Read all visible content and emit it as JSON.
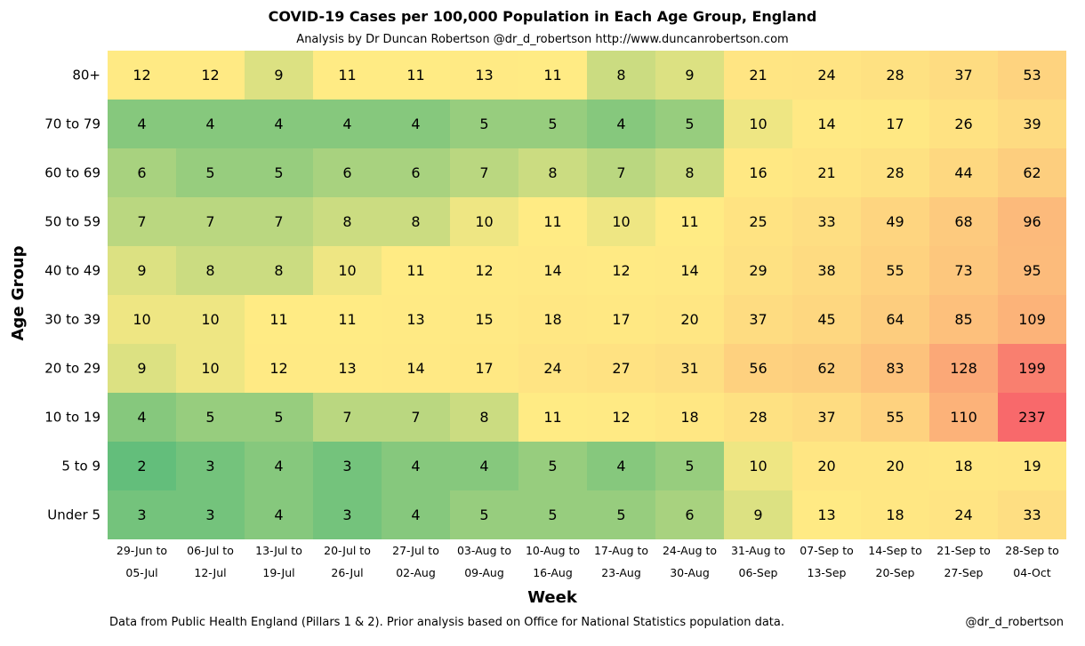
{
  "chart_data": {
    "type": "heatmap",
    "title": "COVID-19 Cases per 100,000 Population in Each Age Group, England",
    "subtitle": "Analysis by Dr Duncan Robertson @dr_d_robertson http://www.duncanrobertson.com",
    "xlabel": "Week",
    "ylabel": "Age Group",
    "rows": [
      "80+",
      "70 to 79",
      "60 to 69",
      "50 to 59",
      "40 to 49",
      "30 to 39",
      "20 to 29",
      "10 to 19",
      "5 to 9",
      "Under 5"
    ],
    "columns": [
      {
        "line1": "29-Jun to",
        "line2": "05-Jul"
      },
      {
        "line1": "06-Jul to",
        "line2": "12-Jul"
      },
      {
        "line1": "13-Jul to",
        "line2": "19-Jul"
      },
      {
        "line1": "20-Jul to",
        "line2": "26-Jul"
      },
      {
        "line1": "27-Jul to",
        "line2": "02-Aug"
      },
      {
        "line1": "03-Aug to",
        "line2": "09-Aug"
      },
      {
        "line1": "10-Aug to",
        "line2": "16-Aug"
      },
      {
        "line1": "17-Aug to",
        "line2": "23-Aug"
      },
      {
        "line1": "24-Aug to",
        "line2": "30-Aug"
      },
      {
        "line1": "31-Aug to",
        "line2": "06-Sep"
      },
      {
        "line1": "07-Sep to",
        "line2": "13-Sep"
      },
      {
        "line1": "14-Sep to",
        "line2": "20-Sep"
      },
      {
        "line1": "21-Sep to",
        "line2": "27-Sep"
      },
      {
        "line1": "28-Sep to",
        "line2": "04-Oct"
      }
    ],
    "values": [
      [
        12,
        12,
        9,
        11,
        11,
        13,
        11,
        8,
        9,
        21,
        24,
        28,
        37,
        53
      ],
      [
        4,
        4,
        4,
        4,
        4,
        5,
        5,
        4,
        5,
        10,
        14,
        17,
        26,
        39
      ],
      [
        6,
        5,
        5,
        6,
        6,
        7,
        8,
        7,
        8,
        16,
        21,
        28,
        44,
        62
      ],
      [
        7,
        7,
        7,
        8,
        8,
        10,
        11,
        10,
        11,
        25,
        33,
        49,
        68,
        96
      ],
      [
        9,
        8,
        8,
        10,
        11,
        12,
        14,
        12,
        14,
        29,
        38,
        55,
        73,
        95
      ],
      [
        10,
        10,
        11,
        11,
        13,
        15,
        18,
        17,
        20,
        37,
        45,
        64,
        85,
        109
      ],
      [
        9,
        10,
        12,
        13,
        14,
        17,
        24,
        27,
        31,
        56,
        62,
        83,
        128,
        199
      ],
      [
        4,
        5,
        5,
        7,
        7,
        8,
        11,
        12,
        18,
        28,
        37,
        55,
        110,
        237
      ],
      [
        2,
        3,
        4,
        3,
        4,
        4,
        5,
        4,
        5,
        10,
        20,
        20,
        18,
        19
      ],
      [
        3,
        3,
        4,
        3,
        4,
        5,
        5,
        5,
        6,
        9,
        13,
        18,
        24,
        33
      ]
    ],
    "color_scale": {
      "low": "#63be7b",
      "mid": "#ffeb84",
      "high": "#f8696b"
    }
  },
  "footer": {
    "source": "Data from Public Health England (Pillars 1 & 2).  Prior analysis based on Office for National Statistics population data.",
    "handle": "@dr_d_robertson"
  }
}
